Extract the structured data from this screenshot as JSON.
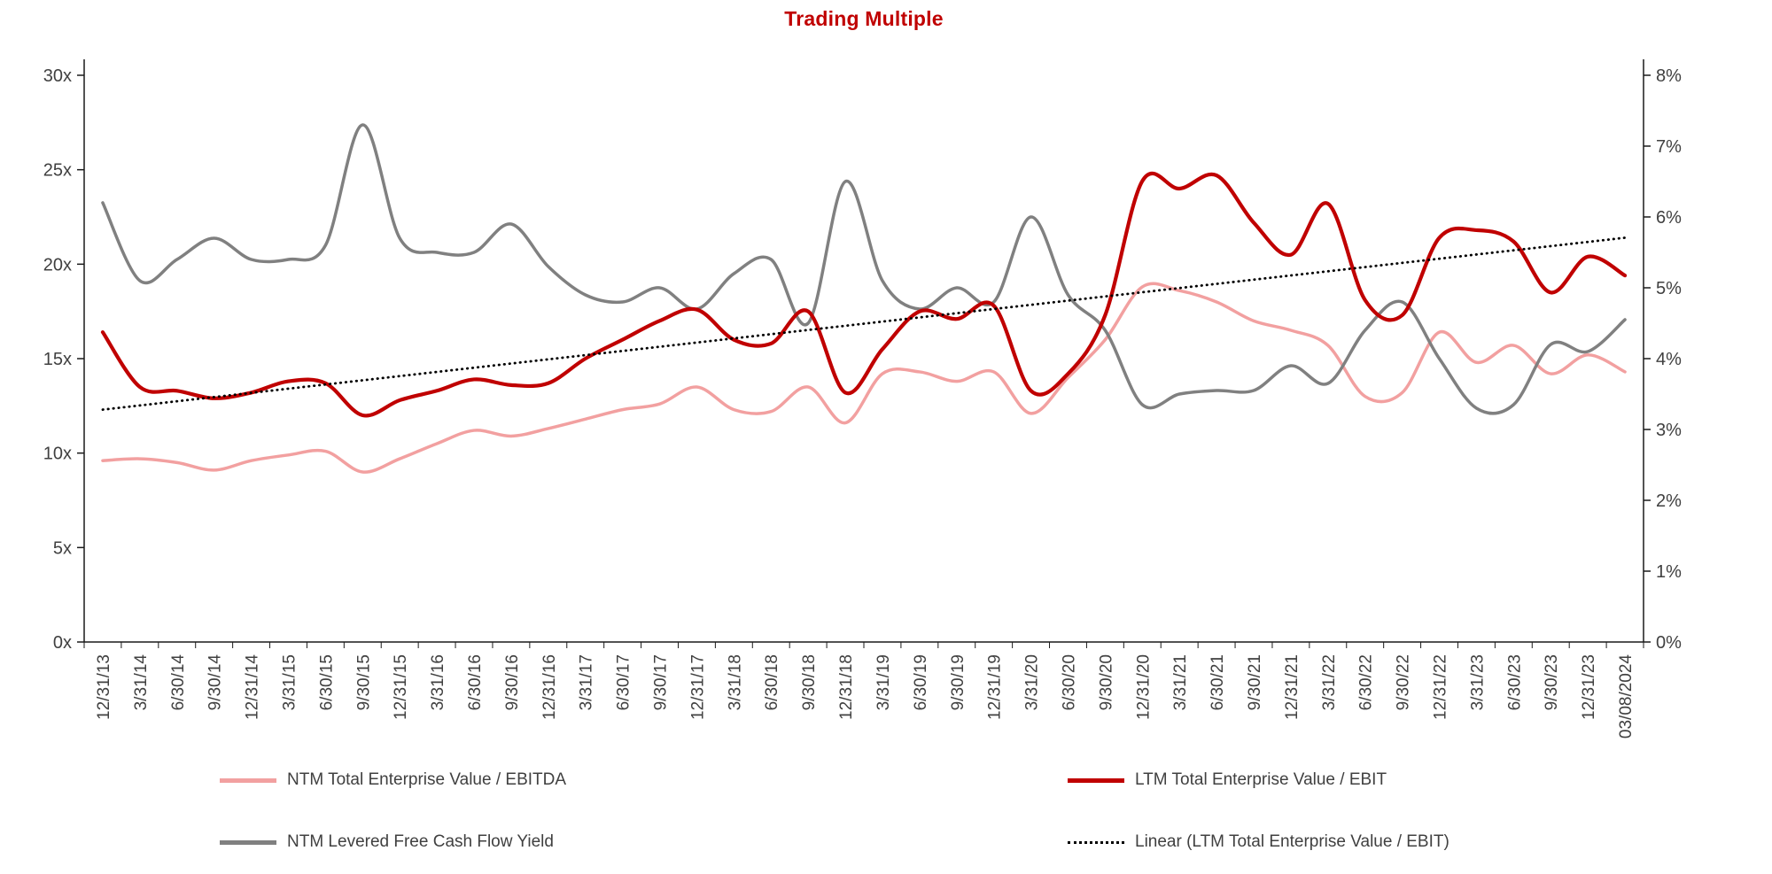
{
  "colors": {
    "title": "#C00000",
    "axis": "#1a1a1a"
  },
  "chart_data": {
    "type": "line",
    "title": "Trading Multiple",
    "legend_position": "bottom",
    "grid": false,
    "categories": [
      "12/31/13",
      "3/31/14",
      "6/30/14",
      "9/30/14",
      "12/31/14",
      "3/31/15",
      "6/30/15",
      "9/30/15",
      "12/31/15",
      "3/31/16",
      "6/30/16",
      "9/30/16",
      "12/31/16",
      "3/31/17",
      "6/30/17",
      "9/30/17",
      "12/31/17",
      "3/31/18",
      "6/30/18",
      "9/30/18",
      "12/31/18",
      "3/31/19",
      "6/30/19",
      "9/30/19",
      "12/31/19",
      "3/31/20",
      "6/30/20",
      "9/30/20",
      "12/31/20",
      "3/31/21",
      "6/30/21",
      "9/30/21",
      "12/31/21",
      "3/31/22",
      "6/30/22",
      "9/30/22",
      "12/31/22",
      "3/31/23",
      "6/30/23",
      "9/30/23",
      "12/31/23",
      "03/08/2024"
    ],
    "left_axis": {
      "min": 0,
      "max": 30,
      "step": 5,
      "suffix": "x"
    },
    "right_axis": {
      "min": 0,
      "max": 8,
      "step": 1,
      "suffix": "%"
    },
    "series": [
      {
        "id": "ntm-ebitda",
        "name": "NTM Total Enterprise Value / EBITDA",
        "axis": "left",
        "color": "#F2A0A0",
        "style": "solid",
        "width": 3.5,
        "values": [
          9.6,
          9.7,
          9.5,
          9.1,
          9.6,
          9.9,
          10.1,
          9.0,
          9.7,
          10.5,
          11.2,
          10.9,
          11.3,
          11.8,
          12.3,
          12.6,
          13.5,
          12.3,
          12.2,
          13.5,
          11.6,
          14.2,
          14.3,
          13.8,
          14.3,
          12.1,
          14.0,
          16.0,
          18.8,
          18.6,
          18.0,
          17.0,
          16.5,
          15.7,
          13.0,
          13.2,
          16.4,
          14.8,
          15.7,
          14.2,
          15.2,
          14.3
        ]
      },
      {
        "id": "ltm-ebit",
        "name": "LTM Total Enterprise Value / EBIT",
        "axis": "left",
        "color": "#C00000",
        "style": "solid",
        "width": 4.2,
        "values": [
          16.4,
          13.5,
          13.3,
          12.9,
          13.2,
          13.8,
          13.7,
          12.0,
          12.8,
          13.3,
          13.9,
          13.6,
          13.7,
          15.0,
          16.0,
          17.0,
          17.6,
          16.0,
          15.8,
          17.5,
          13.2,
          15.5,
          17.5,
          17.1,
          17.8,
          13.3,
          14.2,
          17.3,
          24.4,
          24.0,
          24.7,
          22.2,
          20.5,
          23.2,
          18.1,
          17.3,
          21.4,
          21.8,
          21.2,
          18.5,
          20.4,
          19.4
        ]
      },
      {
        "id": "ntm-fcf-yield",
        "name": "NTM Levered Free Cash Flow Yield",
        "axis": "right",
        "color": "#808080",
        "style": "solid",
        "width": 3.5,
        "values": [
          6.2,
          5.1,
          5.4,
          5.7,
          5.4,
          5.4,
          5.6,
          7.3,
          5.7,
          5.5,
          5.5,
          5.9,
          5.3,
          4.9,
          4.8,
          5.0,
          4.7,
          5.2,
          5.4,
          4.5,
          6.5,
          5.1,
          4.7,
          5.0,
          4.8,
          6.0,
          4.9,
          4.4,
          3.35,
          3.5,
          3.55,
          3.55,
          3.9,
          3.65,
          4.4,
          4.8,
          4.0,
          3.3,
          3.35,
          4.2,
          4.1,
          4.55
        ]
      },
      {
        "id": "linear-trend",
        "name": "Linear (LTM Total Enterprise Value / EBIT)",
        "axis": "left",
        "color": "#000000",
        "style": "dotted",
        "width": 2.8,
        "trend": {
          "start": 12.3,
          "end": 21.4
        }
      }
    ]
  }
}
